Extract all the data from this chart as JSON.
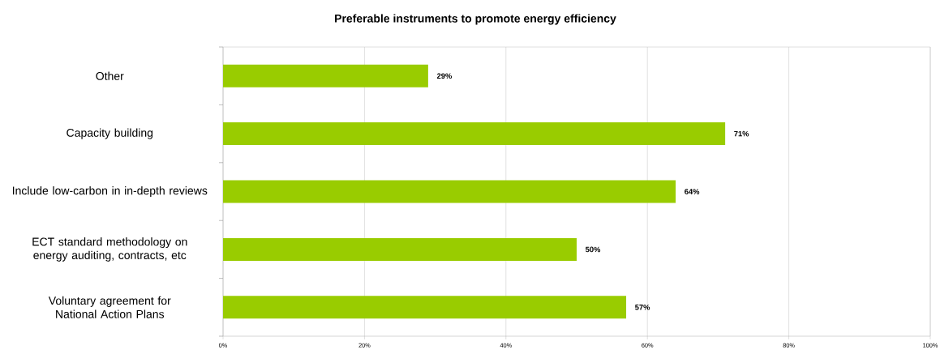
{
  "chart_data": {
    "type": "bar",
    "orientation": "horizontal",
    "title": "Preferable instruments to promote energy efficiency",
    "categories": [
      "Other",
      "Capacity building",
      "Include low-carbon in in-depth reviews",
      "ECT standard methodology on energy auditing, contracts, etc",
      "Voluntary agreement for National Action Plans"
    ],
    "values": [
      29,
      71,
      64,
      50,
      57
    ],
    "value_labels": [
      "29%",
      "71%",
      "64%",
      "50%",
      "57%"
    ],
    "color": "#99cc00",
    "xlim": [
      0,
      100
    ],
    "xticks": [
      {
        "value": 0,
        "label": "0%"
      },
      {
        "value": 20,
        "label": "20%"
      },
      {
        "value": 40,
        "label": "40%"
      },
      {
        "value": 60,
        "label": "60%"
      },
      {
        "value": 80,
        "label": "80%"
      },
      {
        "value": 100,
        "label": "100%"
      }
    ],
    "grid": "x"
  }
}
